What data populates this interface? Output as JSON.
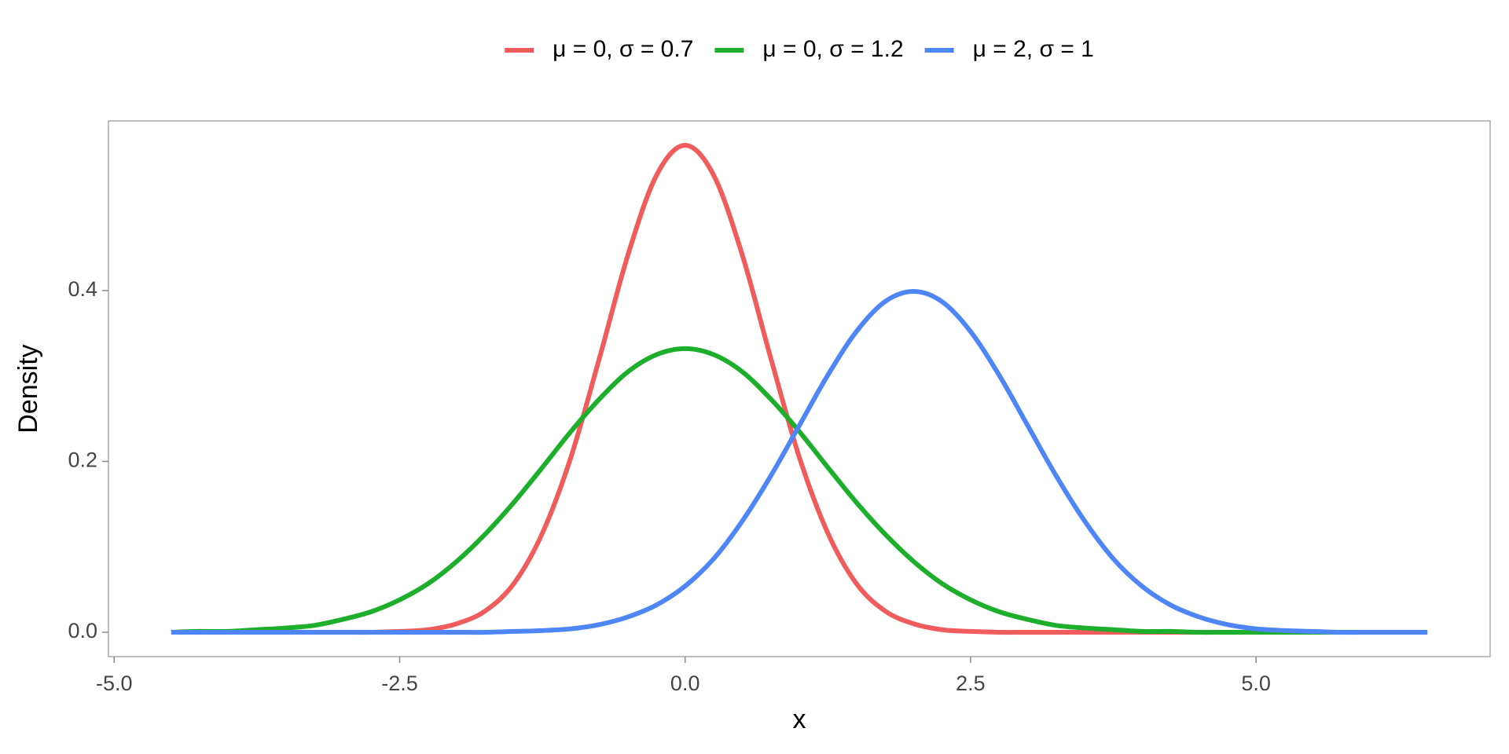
{
  "chart_data": {
    "type": "line",
    "x_label": "x",
    "y_label": "Density",
    "x": [
      -4.5,
      -4.25,
      -4,
      -3.75,
      -3.5,
      -3.25,
      -3,
      -2.75,
      -2.5,
      -2.25,
      -2,
      -1.75,
      -1.5,
      -1.25,
      -1,
      -0.75,
      -0.5,
      -0.25,
      0,
      0.25,
      0.5,
      0.75,
      1,
      1.25,
      1.5,
      1.75,
      2,
      2.25,
      2.5,
      2.75,
      3,
      3.25,
      3.5,
      3.75,
      4,
      4.25,
      4.5,
      4.75,
      5,
      5.25,
      5.5,
      5.75,
      6,
      6.25,
      6.5
    ],
    "series": [
      {
        "name": "μ = 0, σ = 0.7",
        "color": "#F05B5B",
        "values": [
          0,
          0,
          0,
          0,
          0,
          0,
          0,
          0,
          0.001,
          0.003,
          0.01,
          0.025,
          0.057,
          0.116,
          0.205,
          0.321,
          0.442,
          0.535,
          0.57,
          0.535,
          0.442,
          0.321,
          0.205,
          0.116,
          0.057,
          0.025,
          0.01,
          0.003,
          0.001,
          0,
          0,
          0,
          0,
          0,
          0,
          0,
          0,
          0,
          0,
          0,
          0,
          0,
          0,
          0,
          0
        ]
      },
      {
        "name": "μ = 0, σ = 1.2",
        "color": "#1DAF2B",
        "values": [
          0,
          0.001,
          0.001,
          0.003,
          0.005,
          0.008,
          0.015,
          0.024,
          0.038,
          0.057,
          0.083,
          0.115,
          0.152,
          0.193,
          0.235,
          0.273,
          0.305,
          0.325,
          0.332,
          0.325,
          0.305,
          0.273,
          0.235,
          0.193,
          0.152,
          0.115,
          0.083,
          0.057,
          0.038,
          0.024,
          0.015,
          0.008,
          0.005,
          0.003,
          0.001,
          0.001,
          0,
          0,
          0,
          0,
          0,
          0,
          0,
          0,
          0
        ]
      },
      {
        "name": "μ = 2, σ = 1",
        "color": "#4F86F7",
        "values": [
          0,
          0,
          0,
          0,
          0,
          0,
          0,
          0,
          0,
          0,
          0,
          0,
          0.001,
          0.002,
          0.004,
          0.009,
          0.018,
          0.032,
          0.054,
          0.086,
          0.13,
          0.183,
          0.242,
          0.301,
          0.352,
          0.387,
          0.399,
          0.387,
          0.352,
          0.301,
          0.242,
          0.183,
          0.13,
          0.086,
          0.054,
          0.032,
          0.018,
          0.009,
          0.004,
          0.002,
          0.001,
          0,
          0,
          0,
          0
        ]
      }
    ],
    "xlim": [
      -5.05,
      7.05
    ],
    "xticks": [
      {
        "value": -5,
        "label": "-5.0"
      },
      {
        "value": -2.5,
        "label": "-2.5"
      },
      {
        "value": 0,
        "label": "0.0"
      },
      {
        "value": 2.5,
        "label": "2.5"
      },
      {
        "value": 5,
        "label": "5.0"
      }
    ],
    "ylim": [
      -0.0285,
      0.5985
    ],
    "yticks": [
      {
        "value": 0,
        "label": "0.0"
      },
      0.2,
      0.4
    ],
    "grid": false,
    "legend": "top"
  }
}
